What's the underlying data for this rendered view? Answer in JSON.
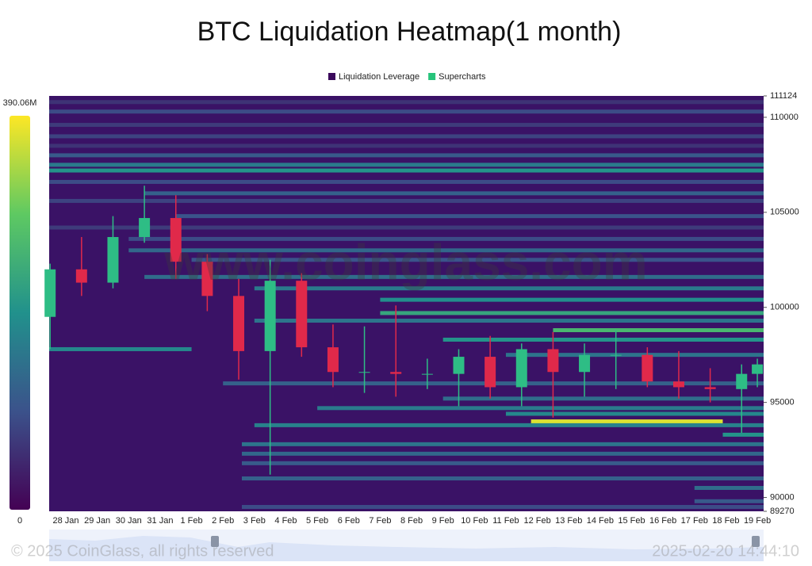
{
  "chart_data": {
    "type": "heatmap",
    "title": "BTC Liquidation Heatmap(1 month)",
    "watermark": "www.coinglass.com",
    "footer_left": "© 2025 CoinGlass, all rights reserved",
    "footer_right": "2025-02-20 14:44:10",
    "series": [
      {
        "name": "Liquidation Leverage",
        "color": "#3b0a5c"
      },
      {
        "name": "Supercharts",
        "color": "#27c47b"
      }
    ],
    "categories": [
      "28 Jan",
      "29 Jan",
      "30 Jan",
      "31 Jan",
      "1 Feb",
      "2 Feb",
      "3 Feb",
      "4 Feb",
      "5 Feb",
      "6 Feb",
      "7 Feb",
      "8 Feb",
      "9 Feb",
      "10 Feb",
      "11 Feb",
      "12 Feb",
      "13 Feb",
      "14 Feb",
      "15 Feb",
      "16 Feb",
      "17 Feb",
      "18 Feb",
      "19 Feb"
    ],
    "xlim": [
      -0.53,
      22.2
    ],
    "ylim": [
      89270,
      111124
    ],
    "yticks": [
      89270,
      90000,
      95000,
      100000,
      105000,
      110000,
      111124
    ],
    "colorbar_lim": [
      0,
      390.06
    ],
    "colorbar_ticks": [
      0,
      {
        "value": 390.06,
        "label": "390.06M"
      }
    ],
    "up_color": "#2ebd85",
    "down_color": "#e0294a",
    "bands": [
      {
        "price": 110800,
        "value": 60,
        "from": -0.53,
        "to": 22.2
      },
      {
        "price": 110300,
        "value": 90,
        "from": -0.53,
        "to": 22.2
      },
      {
        "price": 109600,
        "value": 70,
        "from": -0.53,
        "to": 22.2
      },
      {
        "price": 109000,
        "value": 80,
        "from": -0.53,
        "to": 22.2
      },
      {
        "price": 108500,
        "value": 60,
        "from": -0.53,
        "to": 22.2
      },
      {
        "price": 108000,
        "value": 110,
        "from": -0.53,
        "to": 22.2
      },
      {
        "price": 107500,
        "value": 160,
        "from": -0.53,
        "to": 22.2
      },
      {
        "price": 107200,
        "value": 200,
        "from": -0.53,
        "to": 22.2
      },
      {
        "price": 106600,
        "value": 90,
        "from": -0.53,
        "to": 22.2
      },
      {
        "price": 106000,
        "value": 120,
        "from": 2.5,
        "to": 22.2
      },
      {
        "price": 105600,
        "value": 80,
        "from": -0.53,
        "to": 22.2
      },
      {
        "price": 104800,
        "value": 100,
        "from": 3.5,
        "to": 22.2
      },
      {
        "price": 104200,
        "value": 70,
        "from": -0.53,
        "to": 22.2
      },
      {
        "price": 103600,
        "value": 90,
        "from": 2,
        "to": 22.2
      },
      {
        "price": 103000,
        "value": 130,
        "from": 2,
        "to": 22.2
      },
      {
        "price": 102500,
        "value": 100,
        "from": 4,
        "to": 22.2
      },
      {
        "price": 101600,
        "value": 140,
        "from": 2.5,
        "to": 22.2
      },
      {
        "price": 101000,
        "value": 160,
        "from": 6,
        "to": 22.2
      },
      {
        "price": 100400,
        "value": 190,
        "from": 10,
        "to": 22.2
      },
      {
        "price": 99700,
        "value": 230,
        "from": 10,
        "to": 22.2
      },
      {
        "price": 99300,
        "value": 150,
        "from": 6,
        "to": 22.2
      },
      {
        "price": 98800,
        "value": 260,
        "from": 15.5,
        "to": 22.2
      },
      {
        "price": 98300,
        "value": 200,
        "from": 12,
        "to": 22.2
      },
      {
        "price": 97800,
        "value": 180,
        "from": -0.53,
        "to": 4
      },
      {
        "price": 97500,
        "value": 150,
        "from": 14,
        "to": 22.2
      },
      {
        "price": 96000,
        "value": 120,
        "from": 5,
        "to": 22.2
      },
      {
        "price": 95200,
        "value": 140,
        "from": 12,
        "to": 22.2
      },
      {
        "price": 94700,
        "value": 160,
        "from": 8,
        "to": 22.2
      },
      {
        "price": 94400,
        "value": 180,
        "from": 14,
        "to": 22.2
      },
      {
        "price": 94000,
        "value": 370,
        "from": 14.8,
        "to": 20.9
      },
      {
        "price": 93800,
        "value": 170,
        "from": 6,
        "to": 22.2
      },
      {
        "price": 93300,
        "value": 200,
        "from": 20.9,
        "to": 22.2
      },
      {
        "price": 92800,
        "value": 150,
        "from": 5.6,
        "to": 22.2
      },
      {
        "price": 92300,
        "value": 130,
        "from": 5.6,
        "to": 22.2
      },
      {
        "price": 91800,
        "value": 110,
        "from": 5.6,
        "to": 22.2
      },
      {
        "price": 91000,
        "value": 120,
        "from": 5.6,
        "to": 22.2
      },
      {
        "price": 90500,
        "value": 140,
        "from": 20,
        "to": 22.2
      },
      {
        "price": 89800,
        "value": 110,
        "from": 20,
        "to": 22.2
      },
      {
        "price": 89500,
        "value": 90,
        "from": 5.6,
        "to": 22.2
      }
    ],
    "candles": {
      "x": [
        -0.5,
        0.5,
        1.5,
        2.5,
        3.5,
        4.5,
        5.5,
        6.5,
        7.5,
        8.5,
        9.5,
        10.5,
        11.5,
        12.5,
        13.5,
        14.5,
        15.5,
        16.5,
        17.5,
        18.5,
        19.5,
        20.5,
        21.5,
        22.0
      ],
      "open": [
        99500,
        102000,
        101300,
        103700,
        104700,
        102400,
        100600,
        97700,
        101400,
        97900,
        96600,
        96600,
        96500,
        96500,
        97400,
        95800,
        97800,
        96600,
        97500,
        97500,
        96100,
        95800,
        95700,
        96500
      ],
      "high": [
        102300,
        103700,
        104800,
        106400,
        105900,
        102800,
        101500,
        102500,
        101800,
        99100,
        99000,
        100100,
        97300,
        97800,
        98500,
        98100,
        98700,
        98100,
        98800,
        97900,
        97700,
        96800,
        97000,
        97300
      ],
      "low": [
        97800,
        100600,
        101000,
        103400,
        101500,
        99800,
        96200,
        91200,
        97400,
        95800,
        95500,
        95300,
        95700,
        94800,
        95200,
        94800,
        94200,
        95300,
        95700,
        95800,
        95200,
        95000,
        93400,
        95800
      ],
      "close": [
        102000,
        101300,
        103700,
        104700,
        102400,
        100600,
        97700,
        101400,
        97900,
        96600,
        96600,
        96500,
        96500,
        97400,
        95800,
        97800,
        96600,
        97500,
        97500,
        96100,
        95800,
        95700,
        96500,
        97000
      ]
    }
  }
}
